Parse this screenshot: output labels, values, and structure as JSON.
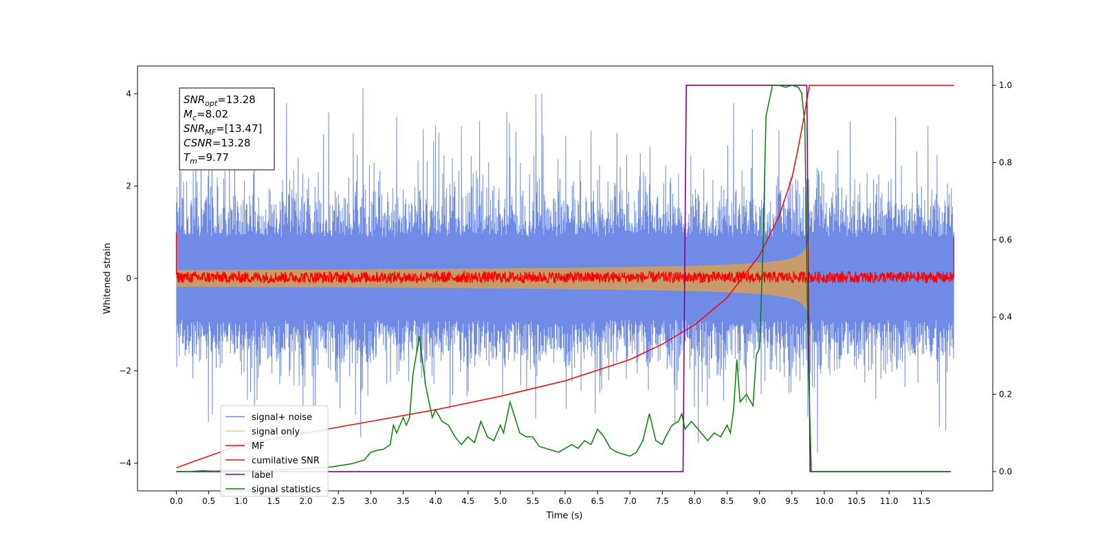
{
  "chart_data": {
    "type": "line",
    "xlabel": "Time (s)",
    "ylabel_left": "Whitened strain",
    "ylabel_right": "",
    "xlim": [
      -0.6,
      12.6
    ],
    "ylim_left": [
      -4.6,
      4.6
    ],
    "ylim_right": [
      -0.05,
      1.05
    ],
    "x_ticks": [
      0.0,
      0.5,
      1.0,
      1.5,
      2.0,
      2.5,
      3.0,
      3.5,
      4.0,
      4.5,
      5.0,
      5.5,
      6.0,
      6.5,
      7.0,
      7.5,
      8.0,
      8.5,
      9.0,
      9.5,
      10.0,
      10.5,
      11.0,
      11.5
    ],
    "x_tick_labels": [
      "0.0",
      "0.5",
      "1.0",
      "1.5",
      "2.0",
      "2.5",
      "3.0",
      "3.5",
      "4.0",
      "4.5",
      "5.0",
      "5.5",
      "6.0",
      "6.5",
      "7.0",
      "7.5",
      "8.0",
      "8.5",
      "9.0",
      "9.5",
      "10.0",
      "10.5",
      "11.0",
      "11.5"
    ],
    "y_ticks_left": [
      -4,
      -2,
      0,
      2,
      4
    ],
    "y_tick_labels_left": [
      "−4",
      "−2",
      "0",
      "2",
      "4"
    ],
    "y_ticks_right": [
      0.0,
      0.2,
      0.4,
      0.6,
      0.8,
      1.0
    ],
    "y_tick_labels_right": [
      "0.0",
      "0.2",
      "0.4",
      "0.6",
      "0.8",
      "1.0"
    ],
    "grid": false,
    "legend_position": "lower-left",
    "info_box": {
      "lines": [
        {
          "sym": "SNR",
          "sub": "opt",
          "value": "=13.28"
        },
        {
          "sym": "M",
          "sub": "c",
          "value": "=8.02"
        },
        {
          "sym": "SNR",
          "sub": "MF",
          "value": "=[13.47]"
        },
        {
          "sym": "CSNR",
          "sub": "",
          "value": "=13.28"
        },
        {
          "sym": "T",
          "sub": "m",
          "value": "=9.77"
        }
      ]
    },
    "series": [
      {
        "name": "signal+ noise",
        "color": "#6f8be6",
        "axis": "left",
        "kind": "noise-envelope",
        "x_range": [
          0.0,
          12.0
        ],
        "amplitude_typical": 1.6,
        "max": 4.12,
        "min": -4.1,
        "spikes_up": [
          [
            0.05,
            2.9
          ],
          [
            0.3,
            3.0
          ],
          [
            0.55,
            3.05
          ],
          [
            0.9,
            3.1
          ],
          [
            1.2,
            3.4
          ],
          [
            1.7,
            3.8
          ],
          [
            2.35,
            3.6
          ],
          [
            2.88,
            4.12
          ],
          [
            3.4,
            3.5
          ],
          [
            4.0,
            3.3
          ],
          [
            4.4,
            3.3
          ],
          [
            5.1,
            3.6
          ],
          [
            5.55,
            3.99
          ],
          [
            6.4,
            3.2
          ],
          [
            6.8,
            3.15
          ],
          [
            8.6,
            3.8
          ],
          [
            9.3,
            3.2
          ],
          [
            10.4,
            3.4
          ],
          [
            11.1,
            3.5
          ],
          [
            11.6,
            3.3
          ]
        ],
        "spikes_down": [
          [
            0.0,
            -2.8
          ],
          [
            0.15,
            -3.4
          ],
          [
            0.55,
            -3.5
          ],
          [
            1.5,
            -3.2
          ],
          [
            2.0,
            -3.2
          ],
          [
            3.05,
            -3.0
          ],
          [
            3.5,
            -3.1
          ],
          [
            4.2,
            -3.2
          ],
          [
            5.4,
            -3.5
          ],
          [
            6.45,
            -3.35
          ],
          [
            7.35,
            -3.3
          ],
          [
            7.95,
            -3.4
          ],
          [
            8.7,
            -3.4
          ],
          [
            9.25,
            -3.5
          ],
          [
            9.95,
            -3.3
          ],
          [
            10.95,
            -4.1
          ],
          [
            11.5,
            -3.6
          ],
          [
            11.9,
            -3.3
          ]
        ]
      },
      {
        "name": "signal only",
        "color": "#c69c6d",
        "axis": "left",
        "kind": "chirp-envelope",
        "x_range": [
          0.0,
          9.77
        ],
        "amplitude_start": 0.05,
        "amplitude_end": 0.85,
        "tc": 9.77
      },
      {
        "name": "MF",
        "color": "#ff0000",
        "axis": "left",
        "kind": "noise-band",
        "x_range": [
          0.0,
          12.0
        ],
        "band": [
          -0.1,
          0.15
        ],
        "edge_start": 1.0,
        "edge_end": 0.9
      },
      {
        "name": "cumilative SNR",
        "color": "#ff0000",
        "axis": "right",
        "x": [
          0.0,
          1.0,
          2.0,
          3.0,
          4.0,
          5.0,
          6.0,
          7.0,
          7.5,
          8.0,
          8.5,
          9.0,
          9.3,
          9.5,
          9.6,
          9.7,
          9.77,
          9.78,
          10.0,
          11.0,
          12.0
        ],
        "values": [
          0.01,
          0.07,
          0.1,
          0.13,
          0.16,
          0.195,
          0.235,
          0.29,
          0.33,
          0.38,
          0.45,
          0.56,
          0.66,
          0.76,
          0.84,
          0.93,
          1.0,
          1.0,
          1.0,
          1.0,
          1.0
        ]
      },
      {
        "name": "label",
        "color": "#800080",
        "axis": "right",
        "x": [
          0.0,
          7.82,
          7.87,
          9.73,
          9.78,
          11.95
        ],
        "values": [
          0.0,
          0.0,
          1.0,
          1.0,
          0.0,
          0.0
        ]
      },
      {
        "name": "signal statistics",
        "color": "#008000",
        "axis": "right",
        "x": [
          0.0,
          0.2,
          0.4,
          0.6,
          0.8,
          1.0,
          1.2,
          1.5,
          1.8,
          2.0,
          2.2,
          2.4,
          2.5,
          2.7,
          2.8,
          2.9,
          3.0,
          3.1,
          3.2,
          3.3,
          3.35,
          3.4,
          3.5,
          3.55,
          3.6,
          3.65,
          3.75,
          3.85,
          3.95,
          4.0,
          4.1,
          4.2,
          4.3,
          4.4,
          4.5,
          4.6,
          4.7,
          4.8,
          4.9,
          5.0,
          5.05,
          5.15,
          5.3,
          5.4,
          5.5,
          5.6,
          5.7,
          5.8,
          5.9,
          6.0,
          6.1,
          6.2,
          6.3,
          6.4,
          6.5,
          6.6,
          6.7,
          6.8,
          6.9,
          7.0,
          7.1,
          7.2,
          7.3,
          7.4,
          7.5,
          7.55,
          7.65,
          7.75,
          7.8,
          7.85,
          7.95,
          8.0,
          8.1,
          8.2,
          8.3,
          8.4,
          8.5,
          8.55,
          8.6,
          8.65,
          8.7,
          8.8,
          8.9,
          8.95,
          9.0,
          9.05,
          9.1,
          9.2,
          9.3,
          9.4,
          9.5,
          9.6,
          9.65,
          9.7,
          9.75,
          9.8,
          10.0,
          10.5,
          11.0,
          11.5,
          11.95
        ],
        "values": [
          0.0,
          0.0,
          0.002,
          0.001,
          0.003,
          0.002,
          0.002,
          0.004,
          0.006,
          0.008,
          0.01,
          0.012,
          0.015,
          0.02,
          0.025,
          0.03,
          0.05,
          0.055,
          0.058,
          0.07,
          0.12,
          0.1,
          0.14,
          0.12,
          0.14,
          0.25,
          0.35,
          0.22,
          0.14,
          0.16,
          0.13,
          0.12,
          0.09,
          0.07,
          0.09,
          0.075,
          0.13,
          0.09,
          0.08,
          0.12,
          0.1,
          0.18,
          0.1,
          0.09,
          0.09,
          0.065,
          0.06,
          0.055,
          0.05,
          0.06,
          0.07,
          0.06,
          0.08,
          0.07,
          0.11,
          0.09,
          0.06,
          0.05,
          0.045,
          0.04,
          0.05,
          0.08,
          0.15,
          0.08,
          0.07,
          0.09,
          0.12,
          0.13,
          0.15,
          0.11,
          0.13,
          0.12,
          0.1,
          0.08,
          0.1,
          0.09,
          0.12,
          0.1,
          0.16,
          0.29,
          0.18,
          0.2,
          0.17,
          0.3,
          0.32,
          0.55,
          0.92,
          1.0,
          1.0,
          0.995,
          1.0,
          0.995,
          0.98,
          0.9,
          0.3,
          0.0,
          0.0,
          0.0,
          0.0,
          0.0,
          0.0
        ]
      }
    ]
  }
}
